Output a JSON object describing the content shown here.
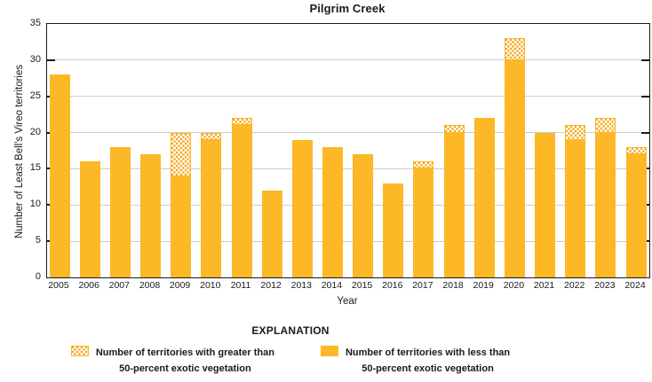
{
  "title": "Pilgrim Creek",
  "chart_data": {
    "type": "bar",
    "stacked": true,
    "title": "Pilgrim Creek",
    "xlabel": "Year",
    "ylabel": "Number of Least Bell's Vireo territories",
    "ylim": [
      0,
      35
    ],
    "yticks": [
      0,
      5,
      10,
      15,
      20,
      25,
      30,
      35
    ],
    "grid": true,
    "legend_position": "bottom",
    "categories": [
      "2005",
      "2006",
      "2007",
      "2008",
      "2009",
      "2010",
      "2011",
      "2012",
      "2013",
      "2014",
      "2015",
      "2016",
      "2017",
      "2018",
      "2019",
      "2020",
      "2021",
      "2022",
      "2023",
      "2024"
    ],
    "series": [
      {
        "name": "Number of territories with less than 50-percent exotic vegetation",
        "style": "solid",
        "values": [
          28,
          16,
          18,
          17,
          14,
          19,
          21,
          12,
          19,
          18,
          17,
          13,
          15,
          20,
          22,
          30,
          20,
          19,
          20,
          17
        ]
      },
      {
        "name": "Number of territories with greater than 50-percent exotic vegetation",
        "style": "dotted",
        "values": [
          0,
          0,
          0,
          0,
          6,
          1,
          1,
          0,
          0,
          0,
          0,
          0,
          1,
          1,
          0,
          3,
          0,
          2,
          2,
          1
        ]
      }
    ],
    "stacked_totals": [
      28,
      16,
      18,
      17,
      20,
      20,
      22,
      12,
      19,
      18,
      17,
      13,
      16,
      21,
      22,
      33,
      20,
      21,
      22,
      18
    ]
  },
  "legend": {
    "header": "EXPLANATION",
    "items": [
      {
        "swatch": "dotted",
        "label_line1": "Number of territories with greater than",
        "label_line2": "50-percent exotic vegetation"
      },
      {
        "swatch": "solid",
        "label_line1": "Number of territories with less than",
        "label_line2": "50-percent exotic vegetation"
      }
    ]
  },
  "colors": {
    "bar_fill": "#FCB826",
    "pattern_dot": "#F2A30F",
    "gridline": "#CDCDCD",
    "axis": "#1A1A1A",
    "background": "#FFFFFF"
  }
}
